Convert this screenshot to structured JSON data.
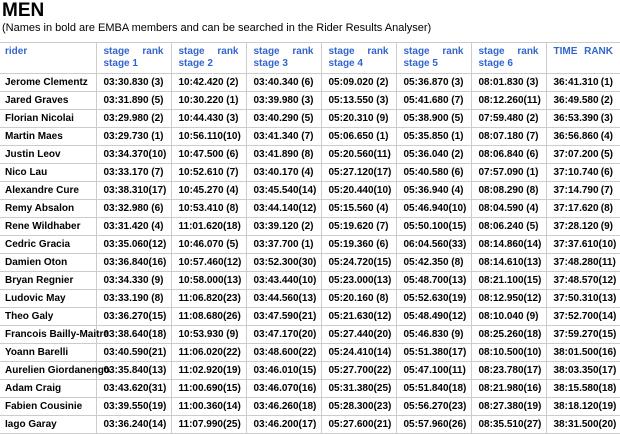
{
  "page": {
    "title": "MEN",
    "subtitle": "(Names in bold are EMBA members and can be searched in the Rider Results Analyser)"
  },
  "colors": {
    "header_text": "#3366cc",
    "border": "#cccccc",
    "body_text": "#000000"
  },
  "table": {
    "rider_header": "rider",
    "stage_label": "stage",
    "rank_label": "rank",
    "stage_headers": [
      "stage 1",
      "stage 2",
      "stage 3",
      "stage 4",
      "stage 5",
      "stage 6"
    ],
    "time_header": "TIME",
    "rank_header": "RANK",
    "rows": [
      {
        "rider": "Jerome Clementz",
        "stages": [
          {
            "time": "03:30.830",
            "rank": "(3)"
          },
          {
            "time": "10:42.420",
            "rank": "(2)"
          },
          {
            "time": "03:40.340",
            "rank": "(6)"
          },
          {
            "time": "05:09.020",
            "rank": "(2)"
          },
          {
            "time": "05:36.870",
            "rank": "(3)"
          },
          {
            "time": "08:01.830",
            "rank": "(3)"
          }
        ],
        "total": "36:41.310",
        "total_rank": "(1)"
      },
      {
        "rider": "Jared Graves",
        "stages": [
          {
            "time": "03:31.890",
            "rank": "(5)"
          },
          {
            "time": "10:30.220",
            "rank": "(1)"
          },
          {
            "time": "03:39.980",
            "rank": "(3)"
          },
          {
            "time": "05:13.550",
            "rank": "(3)"
          },
          {
            "time": "05:41.680",
            "rank": "(7)"
          },
          {
            "time": "08:12.260",
            "rank": "(11)"
          }
        ],
        "total": "36:49.580",
        "total_rank": "(2)"
      },
      {
        "rider": "Florian Nicolai",
        "stages": [
          {
            "time": "03:29.980",
            "rank": "(2)"
          },
          {
            "time": "10:44.430",
            "rank": "(3)"
          },
          {
            "time": "03:40.290",
            "rank": "(5)"
          },
          {
            "time": "05:20.310",
            "rank": "(9)"
          },
          {
            "time": "05:38.900",
            "rank": "(5)"
          },
          {
            "time": "07:59.480",
            "rank": "(2)"
          }
        ],
        "total": "36:53.390",
        "total_rank": "(3)"
      },
      {
        "rider": "Martin Maes",
        "stages": [
          {
            "time": "03:29.730",
            "rank": "(1)"
          },
          {
            "time": "10:56.110",
            "rank": "(10)"
          },
          {
            "time": "03:41.340",
            "rank": "(7)"
          },
          {
            "time": "05:06.650",
            "rank": "(1)"
          },
          {
            "time": "05:35.850",
            "rank": "(1)"
          },
          {
            "time": "08:07.180",
            "rank": "(7)"
          }
        ],
        "total": "36:56.860",
        "total_rank": "(4)"
      },
      {
        "rider": "Justin Leov",
        "stages": [
          {
            "time": "03:34.370",
            "rank": "(10)"
          },
          {
            "time": "10:47.500",
            "rank": "(6)"
          },
          {
            "time": "03:41.890",
            "rank": "(8)"
          },
          {
            "time": "05:20.560",
            "rank": "(11)"
          },
          {
            "time": "05:36.040",
            "rank": "(2)"
          },
          {
            "time": "08:06.840",
            "rank": "(6)"
          }
        ],
        "total": "37:07.200",
        "total_rank": "(5)"
      },
      {
        "rider": "Nico Lau",
        "stages": [
          {
            "time": "03:33.170",
            "rank": "(7)"
          },
          {
            "time": "10:52.610",
            "rank": "(7)"
          },
          {
            "time": "03:40.170",
            "rank": "(4)"
          },
          {
            "time": "05:27.120",
            "rank": "(17)"
          },
          {
            "time": "05:40.580",
            "rank": "(6)"
          },
          {
            "time": "07:57.090",
            "rank": "(1)"
          }
        ],
        "total": "37:10.740",
        "total_rank": "(6)"
      },
      {
        "rider": "Alexandre Cure",
        "stages": [
          {
            "time": "03:38.310",
            "rank": "(17)"
          },
          {
            "time": "10:45.270",
            "rank": "(4)"
          },
          {
            "time": "03:45.540",
            "rank": "(14)"
          },
          {
            "time": "05:20.440",
            "rank": "(10)"
          },
          {
            "time": "05:36.940",
            "rank": "(4)"
          },
          {
            "time": "08:08.290",
            "rank": "(8)"
          }
        ],
        "total": "37:14.790",
        "total_rank": "(7)"
      },
      {
        "rider": "Remy Absalon",
        "stages": [
          {
            "time": "03:32.980",
            "rank": "(6)"
          },
          {
            "time": "10:53.410",
            "rank": "(8)"
          },
          {
            "time": "03:44.140",
            "rank": "(12)"
          },
          {
            "time": "05:15.560",
            "rank": "(4)"
          },
          {
            "time": "05:46.940",
            "rank": "(10)"
          },
          {
            "time": "08:04.590",
            "rank": "(4)"
          }
        ],
        "total": "37:17.620",
        "total_rank": "(8)"
      },
      {
        "rider": "Rene Wildhaber",
        "stages": [
          {
            "time": "03:31.420",
            "rank": "(4)"
          },
          {
            "time": "11:01.620",
            "rank": "(18)"
          },
          {
            "time": "03:39.120",
            "rank": "(2)"
          },
          {
            "time": "05:19.620",
            "rank": "(7)"
          },
          {
            "time": "05:50.100",
            "rank": "(15)"
          },
          {
            "time": "08:06.240",
            "rank": "(5)"
          }
        ],
        "total": "37:28.120",
        "total_rank": "(9)"
      },
      {
        "rider": "Cedric Gracia",
        "stages": [
          {
            "time": "03:35.060",
            "rank": "(12)"
          },
          {
            "time": "10:46.070",
            "rank": "(5)"
          },
          {
            "time": "03:37.700",
            "rank": "(1)"
          },
          {
            "time": "05:19.360",
            "rank": "(6)"
          },
          {
            "time": "06:04.560",
            "rank": "(33)"
          },
          {
            "time": "08:14.860",
            "rank": "(14)"
          }
        ],
        "total": "37:37.610",
        "total_rank": "(10)"
      },
      {
        "rider": "Damien Oton",
        "stages": [
          {
            "time": "03:36.840",
            "rank": "(16)"
          },
          {
            "time": "10:57.460",
            "rank": "(12)"
          },
          {
            "time": "03:52.300",
            "rank": "(30)"
          },
          {
            "time": "05:24.720",
            "rank": "(15)"
          },
          {
            "time": "05:42.350",
            "rank": "(8)"
          },
          {
            "time": "08:14.610",
            "rank": "(13)"
          }
        ],
        "total": "37:48.280",
        "total_rank": "(11)"
      },
      {
        "rider": "Bryan Regnier",
        "stages": [
          {
            "time": "03:34.330",
            "rank": "(9)"
          },
          {
            "time": "10:58.000",
            "rank": "(13)"
          },
          {
            "time": "03:43.440",
            "rank": "(10)"
          },
          {
            "time": "05:23.000",
            "rank": "(13)"
          },
          {
            "time": "05:48.700",
            "rank": "(13)"
          },
          {
            "time": "08:21.100",
            "rank": "(15)"
          }
        ],
        "total": "37:48.570",
        "total_rank": "(12)"
      },
      {
        "rider": "Ludovic May",
        "stages": [
          {
            "time": "03:33.190",
            "rank": "(8)"
          },
          {
            "time": "11:06.820",
            "rank": "(23)"
          },
          {
            "time": "03:44.560",
            "rank": "(13)"
          },
          {
            "time": "05:20.160",
            "rank": "(8)"
          },
          {
            "time": "05:52.630",
            "rank": "(19)"
          },
          {
            "time": "08:12.950",
            "rank": "(12)"
          }
        ],
        "total": "37:50.310",
        "total_rank": "(13)"
      },
      {
        "rider": "Theo Galy",
        "stages": [
          {
            "time": "03:36.270",
            "rank": "(15)"
          },
          {
            "time": "11:08.680",
            "rank": "(26)"
          },
          {
            "time": "03:47.590",
            "rank": "(21)"
          },
          {
            "time": "05:21.630",
            "rank": "(12)"
          },
          {
            "time": "05:48.490",
            "rank": "(12)"
          },
          {
            "time": "08:10.040",
            "rank": "(9)"
          }
        ],
        "total": "37:52.700",
        "total_rank": "(14)"
      },
      {
        "rider": "Francois Bailly-Maitre",
        "stages": [
          {
            "time": "03:38.640",
            "rank": "(18)"
          },
          {
            "time": "10:53.930",
            "rank": "(9)"
          },
          {
            "time": "03:47.170",
            "rank": "(20)"
          },
          {
            "time": "05:27.440",
            "rank": "(20)"
          },
          {
            "time": "05:46.830",
            "rank": "(9)"
          },
          {
            "time": "08:25.260",
            "rank": "(18)"
          }
        ],
        "total": "37:59.270",
        "total_rank": "(15)"
      },
      {
        "rider": "Yoann Barelli",
        "stages": [
          {
            "time": "03:40.590",
            "rank": "(21)"
          },
          {
            "time": "11:06.020",
            "rank": "(22)"
          },
          {
            "time": "03:48.600",
            "rank": "(22)"
          },
          {
            "time": "05:24.410",
            "rank": "(14)"
          },
          {
            "time": "05:51.380",
            "rank": "(17)"
          },
          {
            "time": "08:10.500",
            "rank": "(10)"
          }
        ],
        "total": "38:01.500",
        "total_rank": "(16)"
      },
      {
        "rider": "Aurelien Giordanengo",
        "stages": [
          {
            "time": "03:35.840",
            "rank": "(13)"
          },
          {
            "time": "11:02.920",
            "rank": "(19)"
          },
          {
            "time": "03:46.010",
            "rank": "(15)"
          },
          {
            "time": "05:27.700",
            "rank": "(22)"
          },
          {
            "time": "05:47.100",
            "rank": "(11)"
          },
          {
            "time": "08:23.780",
            "rank": "(17)"
          }
        ],
        "total": "38:03.350",
        "total_rank": "(17)"
      },
      {
        "rider": "Adam Craig",
        "stages": [
          {
            "time": "03:43.620",
            "rank": "(31)"
          },
          {
            "time": "11:00.690",
            "rank": "(15)"
          },
          {
            "time": "03:46.070",
            "rank": "(16)"
          },
          {
            "time": "05:31.380",
            "rank": "(25)"
          },
          {
            "time": "05:51.840",
            "rank": "(18)"
          },
          {
            "time": "08:21.980",
            "rank": "(16)"
          }
        ],
        "total": "38:15.580",
        "total_rank": "(18)"
      },
      {
        "rider": "Fabien Cousinie",
        "stages": [
          {
            "time": "03:39.550",
            "rank": "(19)"
          },
          {
            "time": "11:00.360",
            "rank": "(14)"
          },
          {
            "time": "03:46.260",
            "rank": "(18)"
          },
          {
            "time": "05:28.300",
            "rank": "(23)"
          },
          {
            "time": "05:56.270",
            "rank": "(23)"
          },
          {
            "time": "08:27.380",
            "rank": "(19)"
          }
        ],
        "total": "38:18.120",
        "total_rank": "(19)"
      },
      {
        "rider": "Iago Garay",
        "stages": [
          {
            "time": "03:36.240",
            "rank": "(14)"
          },
          {
            "time": "11:07.990",
            "rank": "(25)"
          },
          {
            "time": "03:46.200",
            "rank": "(17)"
          },
          {
            "time": "05:27.600",
            "rank": "(21)"
          },
          {
            "time": "05:57.960",
            "rank": "(26)"
          },
          {
            "time": "08:35.510",
            "rank": "(27)"
          }
        ],
        "total": "38:31.500",
        "total_rank": "(20)"
      }
    ]
  }
}
